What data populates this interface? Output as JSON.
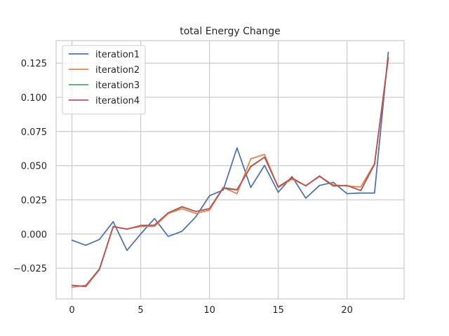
{
  "chart_data": {
    "type": "line",
    "title": "total Energy Change",
    "xlabel": "",
    "ylabel": "",
    "xlim": [
      -1.15,
      24.15
    ],
    "ylim": [
      -0.0475,
      0.1415
    ],
    "xticks": [
      0,
      5,
      10,
      15,
      20
    ],
    "yticks": [
      -0.025,
      0.0,
      0.025,
      0.05,
      0.075,
      0.1,
      0.125
    ],
    "ytick_labels": [
      "−0.025",
      "0.000",
      "0.025",
      "0.050",
      "0.075",
      "0.100",
      "0.125"
    ],
    "xtick_labels": [
      "0",
      "5",
      "10",
      "15",
      "20"
    ],
    "grid": true,
    "legend_position": "top-left",
    "x": [
      0,
      1,
      2,
      3,
      4,
      5,
      6,
      7,
      8,
      9,
      10,
      11,
      12,
      13,
      14,
      15,
      16,
      17,
      18,
      19,
      20,
      21,
      22,
      23
    ],
    "series": [
      {
        "name": "iteration1",
        "color": "#4c72b0",
        "values": [
          -0.0045,
          -0.0083,
          -0.004,
          0.009,
          -0.012,
          0.0,
          0.0113,
          -0.0018,
          0.002,
          0.0125,
          0.028,
          0.0322,
          0.063,
          0.034,
          0.0502,
          0.0305,
          0.042,
          0.0262,
          0.0355,
          0.0378,
          0.0295,
          0.03,
          0.03,
          0.133
        ]
      },
      {
        "name": "iteration2",
        "color": "#dd8452",
        "values": [
          -0.039,
          -0.0375,
          -0.0255,
          0.0052,
          0.0037,
          0.0055,
          0.0055,
          0.015,
          0.0185,
          0.015,
          0.0175,
          0.034,
          0.0295,
          0.055,
          0.0582,
          0.034,
          0.04,
          0.0355,
          0.042,
          0.036,
          0.035,
          0.0345,
          0.0515,
          0.128
        ]
      },
      {
        "name": "iteration3",
        "color": "#55a868",
        "values": [
          -0.0375,
          -0.0385,
          -0.0255,
          0.0055,
          0.0035,
          0.0062,
          0.0065,
          0.0155,
          0.0197,
          0.0165,
          0.0185,
          0.034,
          0.0325,
          0.049,
          0.0562,
          0.0342,
          0.041,
          0.0352,
          0.0422,
          0.035,
          0.0355,
          0.0318,
          0.051,
          0.129
        ]
      },
      {
        "name": "iteration4",
        "color": "#c44e52",
        "values": [
          -0.0375,
          -0.0385,
          -0.026,
          0.0055,
          0.0035,
          0.0062,
          0.0065,
          0.0155,
          0.02,
          0.0165,
          0.0185,
          0.0335,
          0.0322,
          0.0495,
          0.0562,
          0.0345,
          0.041,
          0.0352,
          0.0425,
          0.0352,
          0.0355,
          0.0318,
          0.051,
          0.129
        ]
      }
    ]
  }
}
